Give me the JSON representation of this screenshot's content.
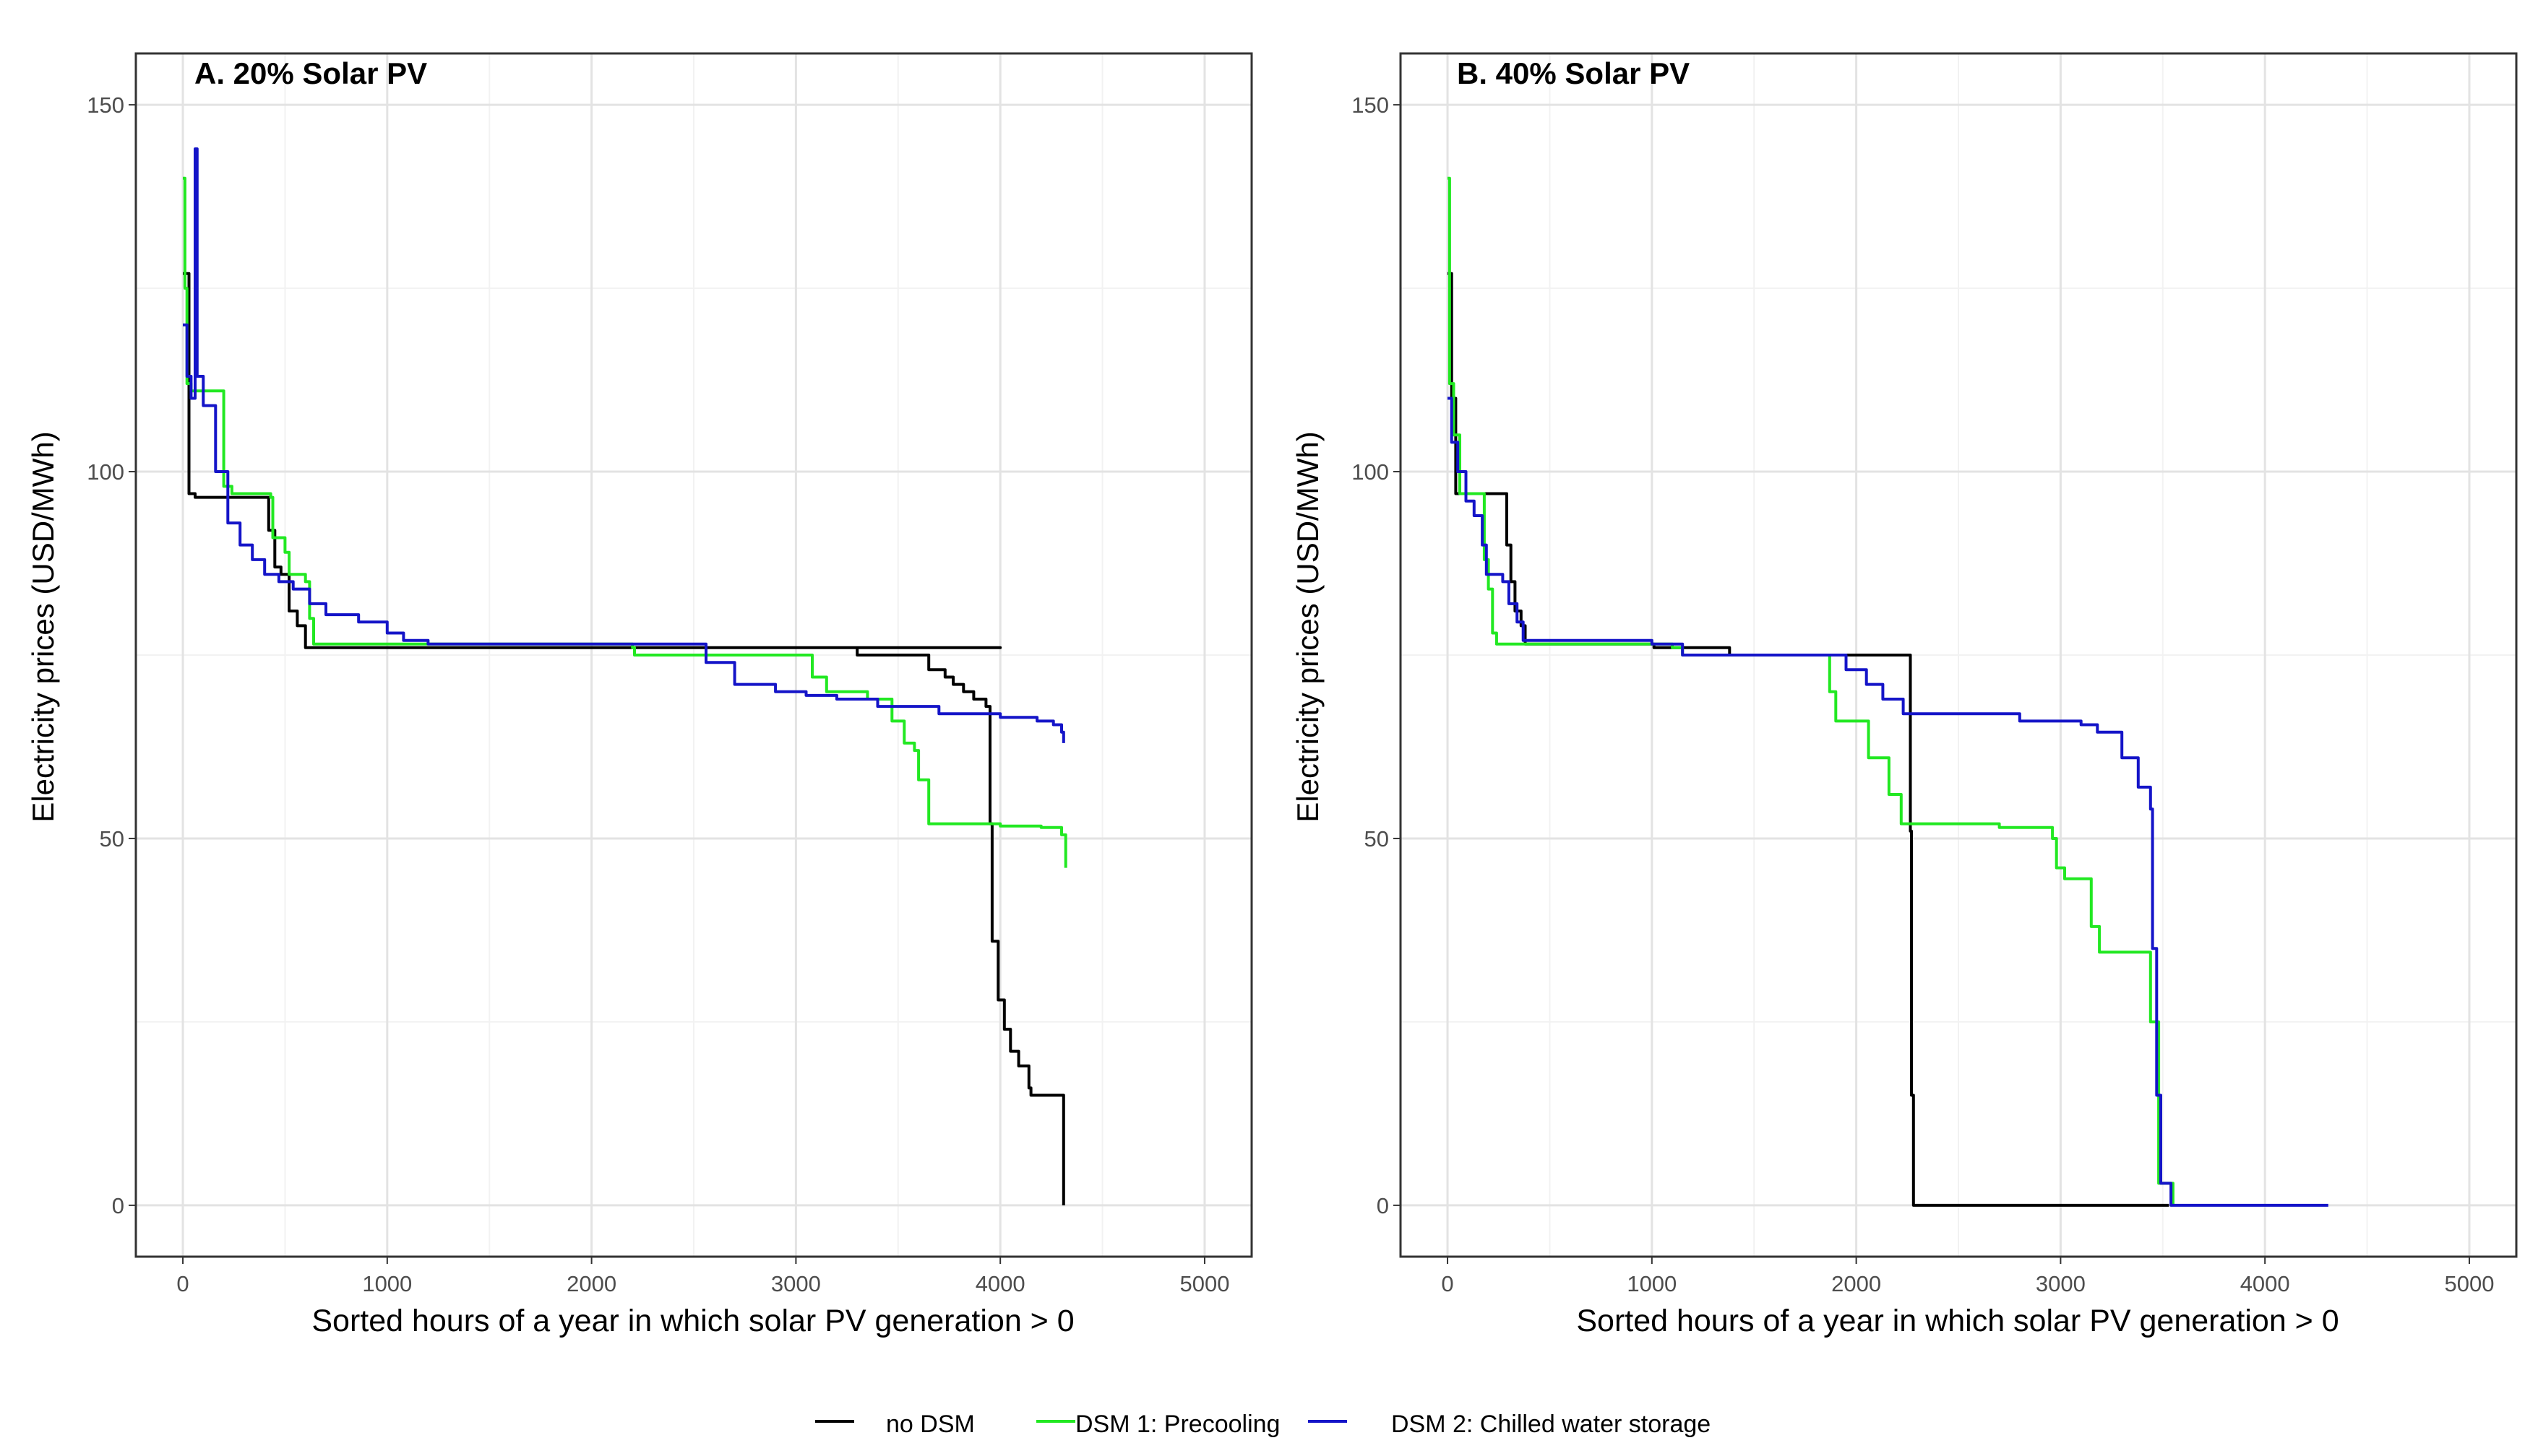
{
  "legend": {
    "position": "bottom",
    "items": [
      {
        "label": "no DSM",
        "color": "#000000"
      },
      {
        "label": "DSM 1: Precooling",
        "color": "#22e822"
      },
      {
        "label": "DSM 2: Chilled water storage",
        "color": "#1414c8"
      }
    ]
  },
  "chart_data": [
    {
      "type": "line",
      "title": "A. 20% Solar PV",
      "xlabel": "Sorted hours of a year in which solar PV generation > 0",
      "ylabel": "Electricity prices (USD/MWh)",
      "xlim": [
        -230,
        5230
      ],
      "ylim": [
        -7,
        157
      ],
      "xticks": [
        0,
        1000,
        2000,
        3000,
        4000,
        5000
      ],
      "yticks": [
        0,
        50,
        100,
        150
      ],
      "grid": true,
      "series": [
        {
          "name": "no DSM",
          "color": "#000000",
          "points": [
            [
              0,
              127
            ],
            [
              30,
              127
            ],
            [
              30,
              97
            ],
            [
              60,
              97
            ],
            [
              60,
              96.5
            ],
            [
              400,
              96.5
            ],
            [
              420,
              92
            ],
            [
              450,
              87
            ],
            [
              480,
              86
            ],
            [
              520,
              81
            ],
            [
              560,
              79
            ],
            [
              600,
              76
            ],
            [
              4000,
              76
            ],
            [
              3300,
              75
            ],
            [
              3640,
              75
            ],
            [
              3650,
              73
            ],
            [
              3730,
              72
            ],
            [
              3770,
              71
            ],
            [
              3820,
              70
            ],
            [
              3870,
              69
            ],
            [
              3930,
              68
            ],
            [
              3950,
              52
            ],
            [
              3960,
              36
            ],
            [
              3990,
              28
            ],
            [
              4020,
              24
            ],
            [
              4050,
              21
            ],
            [
              4090,
              19
            ],
            [
              4140,
              16
            ],
            [
              4150,
              15
            ],
            [
              4310,
              15
            ],
            [
              4310,
              0
            ]
          ]
        },
        {
          "name": "DSM 1: Precooling",
          "color": "#22e822",
          "points": [
            [
              0,
              140
            ],
            [
              10,
              125
            ],
            [
              20,
              112
            ],
            [
              40,
              111
            ],
            [
              180,
              111
            ],
            [
              200,
              98
            ],
            [
              240,
              97
            ],
            [
              430,
              96.5
            ],
            [
              440,
              91
            ],
            [
              500,
              89
            ],
            [
              520,
              86
            ],
            [
              600,
              85
            ],
            [
              620,
              80
            ],
            [
              640,
              76.5
            ],
            [
              1200,
              76.5
            ],
            [
              2200,
              76
            ],
            [
              2210,
              75
            ],
            [
              3000,
              75
            ],
            [
              3080,
              72
            ],
            [
              3150,
              70
            ],
            [
              3350,
              69
            ],
            [
              3470,
              66
            ],
            [
              3530,
              63
            ],
            [
              3580,
              62
            ],
            [
              3600,
              58
            ],
            [
              3650,
              52
            ],
            [
              4000,
              51.7
            ],
            [
              4200,
              51.5
            ],
            [
              4300,
              50.5
            ],
            [
              4320,
              46
            ]
          ]
        },
        {
          "name": "DSM 2: Chilled water storage",
          "color": "#1414c8",
          "points": [
            [
              0,
              120
            ],
            [
              20,
              113
            ],
            [
              40,
              110
            ],
            [
              60,
              144
            ],
            [
              70,
              113
            ],
            [
              100,
              109
            ],
            [
              160,
              100
            ],
            [
              220,
              93
            ],
            [
              280,
              90
            ],
            [
              340,
              88
            ],
            [
              400,
              86
            ],
            [
              470,
              85
            ],
            [
              540,
              84
            ],
            [
              620,
              82
            ],
            [
              700,
              80.5
            ],
            [
              860,
              79.5
            ],
            [
              1000,
              78
            ],
            [
              1080,
              77
            ],
            [
              1200,
              76.5
            ],
            [
              2400,
              76.5
            ],
            [
              2560,
              74
            ],
            [
              2700,
              71
            ],
            [
              2900,
              70
            ],
            [
              3050,
              69.5
            ],
            [
              3200,
              69
            ],
            [
              3400,
              68
            ],
            [
              3700,
              67
            ],
            [
              4000,
              66.5
            ],
            [
              4180,
              66
            ],
            [
              4260,
              65.5
            ],
            [
              4300,
              64.5
            ],
            [
              4310,
              63
            ]
          ]
        }
      ]
    },
    {
      "type": "line",
      "title": "B. 40% Solar PV",
      "xlabel": "Sorted hours of a year in which solar PV generation > 0",
      "ylabel": "Electricity prices (USD/MWh)",
      "xlim": [
        -230,
        5230
      ],
      "ylim": [
        -7,
        157
      ],
      "xticks": [
        0,
        1000,
        2000,
        3000,
        4000,
        5000
      ],
      "yticks": [
        0,
        50,
        100,
        150
      ],
      "grid": true,
      "series": [
        {
          "name": "no DSM",
          "color": "#000000",
          "points": [
            [
              0,
              127
            ],
            [
              20,
              110
            ],
            [
              40,
              97
            ],
            [
              270,
              97
            ],
            [
              290,
              90
            ],
            [
              310,
              85
            ],
            [
              330,
              81
            ],
            [
              360,
              79
            ],
            [
              380,
              76.5
            ],
            [
              1000,
              76.5
            ],
            [
              1010,
              76
            ],
            [
              1380,
              76
            ],
            [
              1380,
              75
            ],
            [
              1880,
              75
            ],
            [
              2260,
              75
            ],
            [
              2265,
              51
            ],
            [
              2270,
              15
            ],
            [
              2280,
              0
            ],
            [
              3530,
              0
            ]
          ]
        },
        {
          "name": "DSM 1: Precooling",
          "color": "#22e822",
          "points": [
            [
              0,
              140
            ],
            [
              10,
              112
            ],
            [
              30,
              105
            ],
            [
              60,
              97
            ],
            [
              160,
              97
            ],
            [
              180,
              88
            ],
            [
              200,
              84
            ],
            [
              220,
              78
            ],
            [
              240,
              76.5
            ],
            [
              1100,
              76
            ],
            [
              1150,
              75
            ],
            [
              1850,
              75
            ],
            [
              1870,
              70
            ],
            [
              1900,
              66
            ],
            [
              2050,
              66
            ],
            [
              2060,
              61
            ],
            [
              2150,
              61
            ],
            [
              2160,
              56
            ],
            [
              2220,
              52
            ],
            [
              2700,
              51.5
            ],
            [
              2960,
              50
            ],
            [
              2980,
              46
            ],
            [
              3020,
              44.5
            ],
            [
              3130,
              44.5
            ],
            [
              3150,
              38
            ],
            [
              3190,
              34.5
            ],
            [
              3420,
              34.5
            ],
            [
              3440,
              25
            ],
            [
              3480,
              3
            ],
            [
              3540,
              3
            ],
            [
              3550,
              0
            ]
          ]
        },
        {
          "name": "DSM 2: Chilled water storage",
          "color": "#1414c8",
          "points": [
            [
              0,
              110
            ],
            [
              20,
              104
            ],
            [
              50,
              100
            ],
            [
              90,
              96
            ],
            [
              130,
              94
            ],
            [
              170,
              90
            ],
            [
              190,
              86
            ],
            [
              270,
              85
            ],
            [
              300,
              82
            ],
            [
              340,
              79.5
            ],
            [
              370,
              77
            ],
            [
              1000,
              76.5
            ],
            [
              1150,
              75
            ],
            [
              1800,
              75
            ],
            [
              1950,
              73
            ],
            [
              2050,
              71
            ],
            [
              2130,
              69
            ],
            [
              2230,
              67
            ],
            [
              2700,
              67
            ],
            [
              2800,
              66
            ],
            [
              3100,
              65.5
            ],
            [
              3180,
              64.5
            ],
            [
              3300,
              61
            ],
            [
              3380,
              57
            ],
            [
              3440,
              54
            ],
            [
              3450,
              35
            ],
            [
              3470,
              15
            ],
            [
              3490,
              3
            ],
            [
              3540,
              0
            ],
            [
              4310,
              0
            ]
          ]
        }
      ]
    }
  ]
}
